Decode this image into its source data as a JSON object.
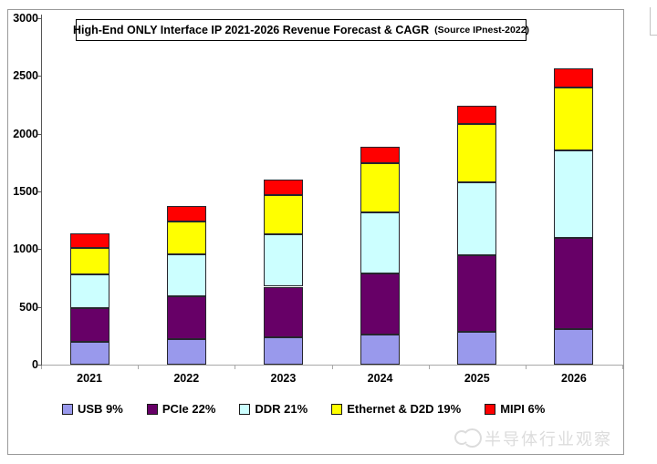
{
  "chart_data": {
    "type": "bar",
    "stacked": true,
    "title": "High-End ONLY Interface IP 2021-2026 Revenue Forecast & CAGR",
    "title_source": "(Source IPnest-2022)",
    "categories": [
      "2021",
      "2022",
      "2023",
      "2024",
      "2025",
      "2026"
    ],
    "series": [
      {
        "name": "USB 9%",
        "color": "#9999EC",
        "values": [
          200,
          220,
          240,
          260,
          285,
          310
        ]
      },
      {
        "name": "PCIe 22%",
        "color": "#670067",
        "values": [
          290,
          375,
          435,
          530,
          660,
          790
        ]
      },
      {
        "name": "DDR 21%",
        "color": "#CCFFFF",
        "values": [
          290,
          360,
          455,
          525,
          635,
          755
        ]
      },
      {
        "name": "Ethernet & D2D 19%",
        "color": "#FFFF00",
        "values": [
          230,
          285,
          340,
          430,
          505,
          545
        ]
      },
      {
        "name": "MIPI 6%",
        "color": "#FF0000",
        "values": [
          125,
          130,
          130,
          145,
          155,
          165
        ]
      }
    ],
    "totals": [
      1135,
      1370,
      1600,
      1890,
      2240,
      2565
    ],
    "y_ticks": [
      0,
      500,
      1000,
      1500,
      2000,
      2500,
      3000
    ],
    "ylim": [
      0,
      3000
    ],
    "grid": false,
    "legend_position": "bottom"
  },
  "watermark": {
    "text": "半导体行业观察"
  }
}
